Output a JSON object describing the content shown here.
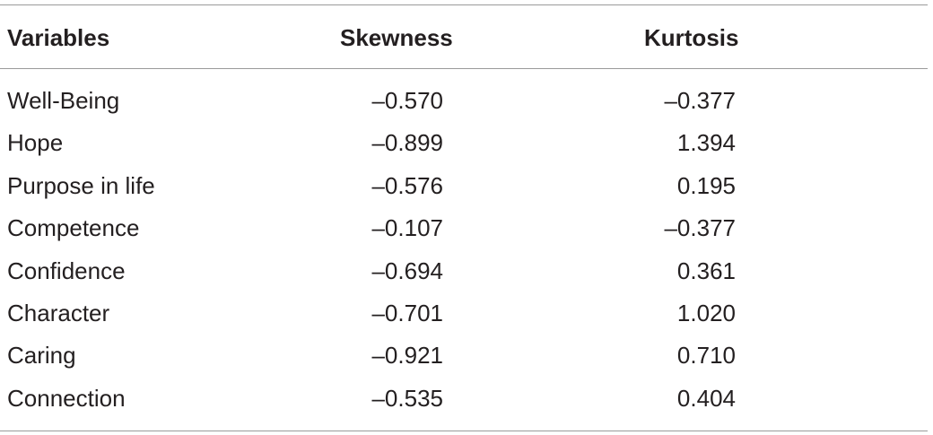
{
  "table": {
    "header": [
      "Variables",
      "Skewness",
      "Kurtosis"
    ],
    "rows": [
      [
        "Well-Being",
        "–0.570",
        "–0.377"
      ],
      [
        "Hope",
        "–0.899",
        "1.394"
      ],
      [
        "Purpose in life",
        "–0.576",
        "0.195"
      ],
      [
        "Competence",
        "–0.107",
        "–0.377"
      ],
      [
        "Confidence",
        "–0.694",
        "0.361"
      ],
      [
        "Character",
        "–0.701",
        "1.020"
      ],
      [
        "Caring",
        "–0.921",
        "0.710"
      ],
      [
        "Connection",
        "–0.535",
        "0.404"
      ]
    ]
  }
}
